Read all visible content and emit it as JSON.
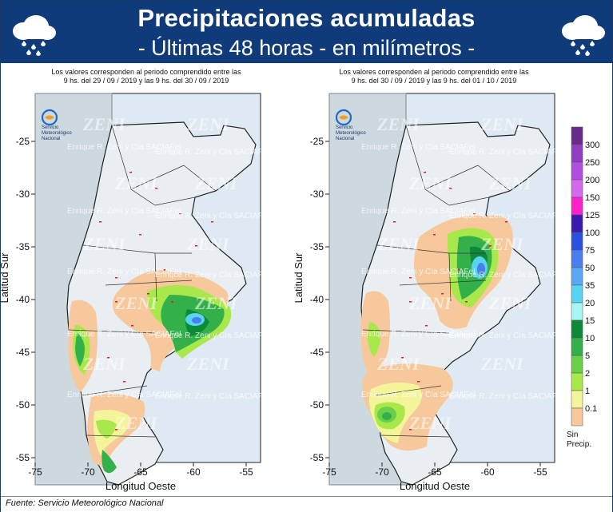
{
  "header": {
    "title": "Precipitaciones acumuladas",
    "subtitle": "- Últimas 48 horas - en milímetros -"
  },
  "maps": [
    {
      "period_line1": "Los valores corresponden al periodo comprendido entre las",
      "period_line2": "9 hs. del 29 / 09 / 2019   y las 9 hs. del 30 / 09 / 2019"
    },
    {
      "period_line1": "Los valores corresponden al periodo comprendido entre las",
      "period_line2": "9 hs. del 30 / 09 / 2019   y las 9 hs. del 01 / 10 / 2019"
    }
  ],
  "axes": {
    "x_label": "Longitud Oeste",
    "y_label": "Latitud Sur",
    "x_ticks": [
      "-75",
      "-70",
      "-65",
      "-60",
      "-55"
    ],
    "y_ticks": [
      "-25",
      "-30",
      "-35",
      "-40",
      "-45",
      "-50",
      "-55"
    ]
  },
  "logo": {
    "line1": "Servicio",
    "line2": "Meteorológico",
    "line3": "Nacional"
  },
  "watermark": {
    "brand": "ZENI",
    "company": "Enrique R. Zeni y Cía SACIAFeI"
  },
  "legend": {
    "levels": [
      "300",
      "250",
      "200",
      "150",
      "125",
      "100",
      "75",
      "50",
      "35",
      "20",
      "15",
      "10",
      "5",
      "2",
      "1",
      "0.1"
    ],
    "colors": [
      "#6a2a8c",
      "#8e3fc2",
      "#b04ee0",
      "#d26af0",
      "#ff22c8",
      "#3a1ab0",
      "#2a50dd",
      "#4a7ef0",
      "#5aa8f4",
      "#58d4f0",
      "#a8f4f4",
      "#0c8a3a",
      "#34b04a",
      "#6ad04a",
      "#a8e84a",
      "#f4f49a",
      "#f6c89c"
    ],
    "no_precip_label_1": "Sin",
    "no_precip_label_2": "Precip."
  },
  "footer": {
    "source": "Fuente: Servicio Meteorológico Nacional"
  }
}
